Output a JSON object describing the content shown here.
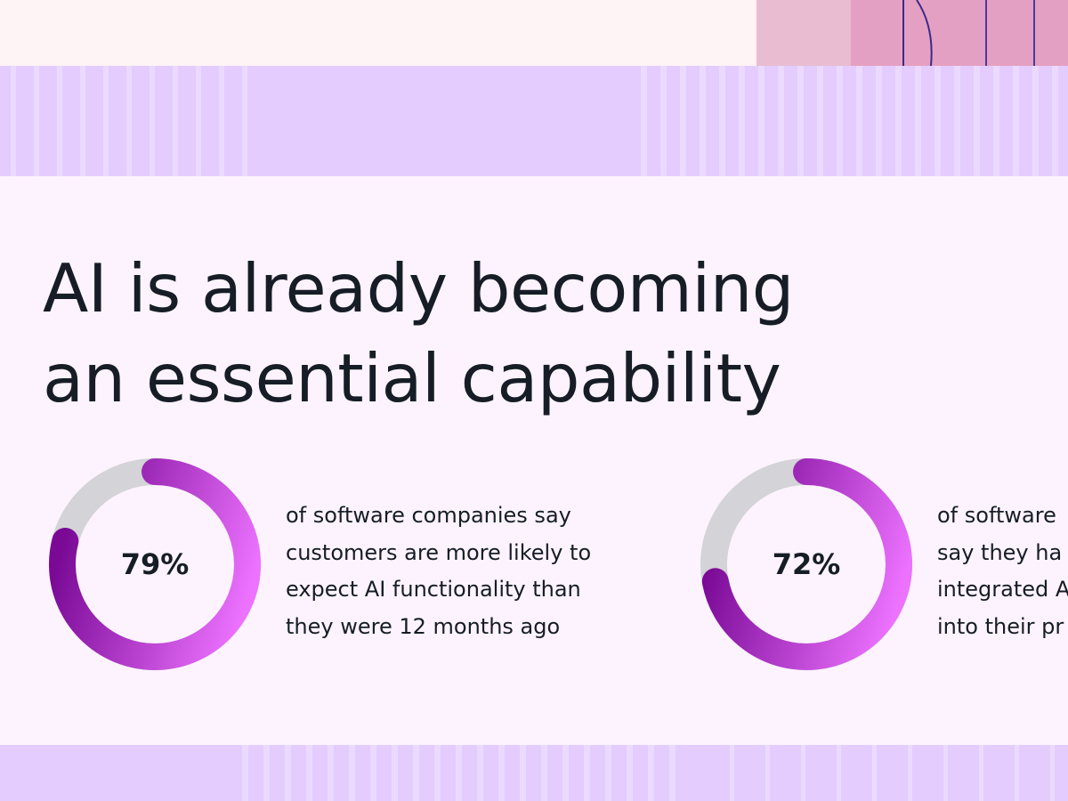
{
  "headline": {
    "lines": [
      "AI is already becoming",
      "an essential capability"
    ]
  },
  "stats": [
    {
      "value": "79%",
      "percent": 79,
      "description_lines": [
        "of software companies say",
        "customers are more likely to",
        "expect AI functionality than",
        "they were 12 months ago"
      ]
    },
    {
      "value": "72%",
      "percent": 72,
      "description_lines": [
        "of software",
        "say they ha",
        "integrated A",
        "into their pr"
      ]
    }
  ],
  "colors": {
    "background": "#fdf3fe",
    "stripe_band": "#e4ccff",
    "text": "#161d26",
    "donut_track": "#d4d3d7",
    "donut_gradient_start": "#7a0a96",
    "donut_gradient_end": "#ec72ff"
  }
}
